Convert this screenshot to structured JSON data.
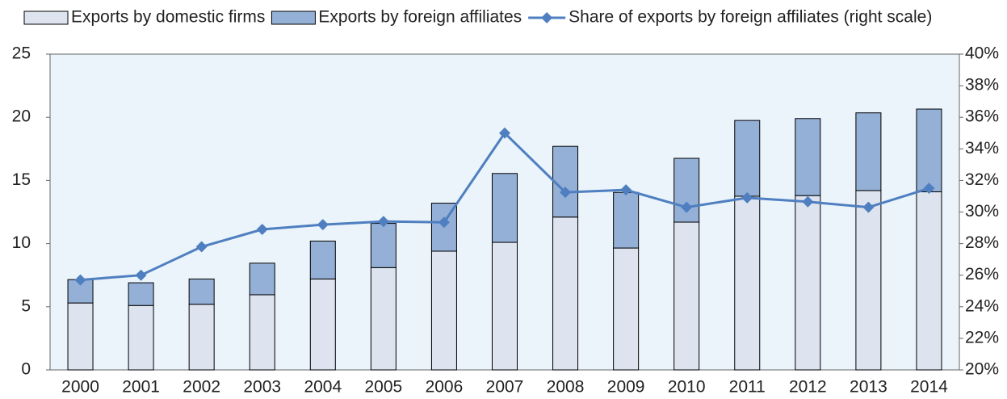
{
  "chart_data": {
    "type": "bar_line",
    "categories": [
      "2000",
      "2001",
      "2002",
      "2003",
      "2004",
      "2005",
      "2006",
      "2007",
      "2008",
      "2009",
      "2010",
      "2011",
      "2012",
      "2013",
      "2014"
    ],
    "series": [
      {
        "name": "Exports by domestic firms",
        "color": "#dde4f0",
        "values": [
          5.3,
          5.1,
          5.2,
          5.95,
          7.2,
          8.1,
          9.4,
          10.1,
          12.1,
          9.65,
          11.7,
          13.75,
          13.8,
          14.2,
          14.1
        ]
      },
      {
        "name": "Exports by foreign affiliates",
        "color": "#94b0d6",
        "values": [
          1.85,
          1.8,
          2.0,
          2.5,
          3.0,
          3.5,
          3.8,
          5.45,
          5.6,
          4.4,
          5.05,
          6.0,
          6.1,
          6.15,
          6.55
        ]
      },
      {
        "name": "Share of exports by foreign affiliates (right scale)",
        "color": "#4f7fc0",
        "axis": "y2",
        "values": [
          25.7,
          26.0,
          27.8,
          28.9,
          29.2,
          29.4,
          29.35,
          35.0,
          31.25,
          31.4,
          30.3,
          30.9,
          30.65,
          30.3,
          31.5
        ]
      }
    ],
    "ylim": [
      0,
      25
    ],
    "yticks": [
      0,
      5,
      10,
      15,
      20,
      25
    ],
    "y2lim": [
      20,
      40
    ],
    "y2ticks": [
      {
        "value": 20,
        "label": "20%"
      },
      {
        "value": 22,
        "label": "22%"
      },
      {
        "value": 24,
        "label": "24%"
      },
      {
        "value": 26,
        "label": "26%"
      },
      {
        "value": 28,
        "label": "28%"
      },
      {
        "value": 30,
        "label": "30%"
      },
      {
        "value": 32,
        "label": "32%"
      },
      {
        "value": 34,
        "label": "34%"
      },
      {
        "value": 36,
        "label": "36%"
      },
      {
        "value": 38,
        "label": "38%"
      },
      {
        "value": 40,
        "label": "40%"
      }
    ],
    "legend": "top"
  }
}
